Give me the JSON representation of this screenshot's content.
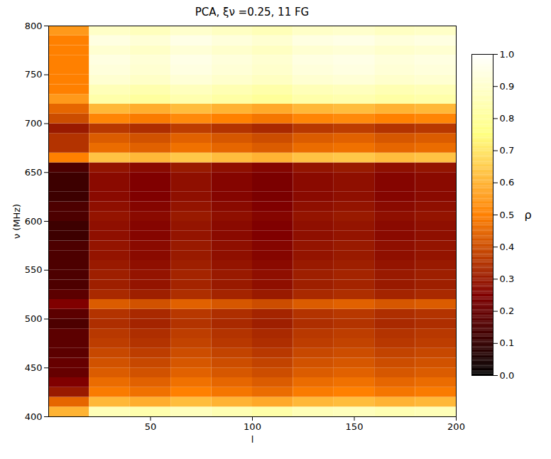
{
  "chart_data": {
    "type": "heatmap",
    "title": "PCA, ξν =0.25, 11 FG",
    "x_label": "l",
    "y_label": "ν (MHz)",
    "xlim": [
      0,
      200
    ],
    "xticks": [
      50,
      100,
      150,
      200
    ],
    "ylim": [
      400,
      800
    ],
    "yticks": [
      400,
      450,
      500,
      550,
      600,
      650,
      700,
      750,
      800
    ],
    "x": [
      10,
      30,
      50,
      70,
      90,
      110,
      130,
      150,
      170,
      190
    ],
    "y": [
      405,
      415,
      425,
      435,
      445,
      455,
      465,
      475,
      485,
      495,
      505,
      515,
      525,
      535,
      545,
      555,
      565,
      575,
      585,
      595,
      605,
      615,
      625,
      635,
      645,
      655,
      665,
      675,
      685,
      695,
      705,
      715,
      725,
      735,
      745,
      755,
      765,
      775,
      785,
      795
    ],
    "values": [
      [
        0.6,
        0.86,
        0.84,
        0.87,
        0.85,
        0.83,
        0.86,
        0.87,
        0.85,
        0.86
      ],
      [
        0.45,
        0.61,
        0.59,
        0.62,
        0.6,
        0.58,
        0.61,
        0.62,
        0.6,
        0.61
      ],
      [
        0.3,
        0.49,
        0.47,
        0.5,
        0.48,
        0.46,
        0.49,
        0.5,
        0.48,
        0.49
      ],
      [
        0.25,
        0.46,
        0.44,
        0.47,
        0.45,
        0.43,
        0.46,
        0.47,
        0.45,
        0.46
      ],
      [
        0.2,
        0.43,
        0.41,
        0.44,
        0.42,
        0.4,
        0.43,
        0.44,
        0.42,
        0.43
      ],
      [
        0.2,
        0.41,
        0.39,
        0.42,
        0.4,
        0.38,
        0.41,
        0.42,
        0.4,
        0.41
      ],
      [
        0.18,
        0.39,
        0.37,
        0.4,
        0.38,
        0.36,
        0.39,
        0.4,
        0.38,
        0.39
      ],
      [
        0.18,
        0.37,
        0.35,
        0.38,
        0.36,
        0.34,
        0.37,
        0.38,
        0.36,
        0.37
      ],
      [
        0.18,
        0.36,
        0.34,
        0.37,
        0.35,
        0.33,
        0.36,
        0.37,
        0.35,
        0.36
      ],
      [
        0.15,
        0.34,
        0.32,
        0.35,
        0.33,
        0.31,
        0.34,
        0.35,
        0.33,
        0.34
      ],
      [
        0.18,
        0.35,
        0.33,
        0.36,
        0.34,
        0.32,
        0.35,
        0.36,
        0.34,
        0.35
      ],
      [
        0.25,
        0.43,
        0.41,
        0.44,
        0.42,
        0.4,
        0.43,
        0.44,
        0.42,
        0.43
      ],
      [
        0.18,
        0.33,
        0.31,
        0.34,
        0.32,
        0.3,
        0.33,
        0.34,
        0.32,
        0.33
      ],
      [
        0.15,
        0.31,
        0.29,
        0.32,
        0.3,
        0.28,
        0.31,
        0.32,
        0.3,
        0.31
      ],
      [
        0.15,
        0.31,
        0.29,
        0.32,
        0.3,
        0.28,
        0.31,
        0.32,
        0.3,
        0.31
      ],
      [
        0.15,
        0.3,
        0.28,
        0.31,
        0.29,
        0.27,
        0.3,
        0.31,
        0.29,
        0.3
      ],
      [
        0.15,
        0.29,
        0.27,
        0.3,
        0.28,
        0.26,
        0.29,
        0.3,
        0.28,
        0.29
      ],
      [
        0.15,
        0.29,
        0.27,
        0.3,
        0.28,
        0.26,
        0.29,
        0.3,
        0.28,
        0.29
      ],
      [
        0.12,
        0.28,
        0.26,
        0.29,
        0.27,
        0.25,
        0.28,
        0.29,
        0.27,
        0.28
      ],
      [
        0.12,
        0.28,
        0.26,
        0.29,
        0.27,
        0.25,
        0.28,
        0.29,
        0.27,
        0.28
      ],
      [
        0.15,
        0.29,
        0.27,
        0.3,
        0.28,
        0.26,
        0.29,
        0.3,
        0.28,
        0.29
      ],
      [
        0.15,
        0.28,
        0.26,
        0.29,
        0.27,
        0.25,
        0.28,
        0.29,
        0.27,
        0.28
      ],
      [
        0.12,
        0.27,
        0.25,
        0.28,
        0.26,
        0.24,
        0.27,
        0.28,
        0.26,
        0.27
      ],
      [
        0.12,
        0.27,
        0.25,
        0.28,
        0.26,
        0.24,
        0.27,
        0.28,
        0.26,
        0.27
      ],
      [
        0.12,
        0.27,
        0.25,
        0.28,
        0.26,
        0.24,
        0.27,
        0.28,
        0.26,
        0.27
      ],
      [
        0.15,
        0.29,
        0.27,
        0.3,
        0.28,
        0.26,
        0.29,
        0.3,
        0.28,
        0.29
      ],
      [
        0.5,
        0.63,
        0.61,
        0.64,
        0.62,
        0.6,
        0.63,
        0.64,
        0.62,
        0.63
      ],
      [
        0.35,
        0.46,
        0.44,
        0.47,
        0.45,
        0.43,
        0.46,
        0.47,
        0.45,
        0.46
      ],
      [
        0.35,
        0.43,
        0.41,
        0.44,
        0.42,
        0.4,
        0.43,
        0.44,
        0.42,
        0.43
      ],
      [
        0.3,
        0.36,
        0.34,
        0.37,
        0.35,
        0.33,
        0.36,
        0.37,
        0.35,
        0.36
      ],
      [
        0.4,
        0.51,
        0.49,
        0.52,
        0.5,
        0.48,
        0.51,
        0.52,
        0.5,
        0.51
      ],
      [
        0.45,
        0.61,
        0.59,
        0.62,
        0.6,
        0.58,
        0.61,
        0.62,
        0.6,
        0.61
      ],
      [
        0.55,
        0.83,
        0.81,
        0.84,
        0.82,
        0.8,
        0.83,
        0.84,
        0.82,
        0.83
      ],
      [
        0.5,
        0.86,
        0.84,
        0.87,
        0.85,
        0.83,
        0.86,
        0.87,
        0.85,
        0.86
      ],
      [
        0.5,
        0.91,
        0.89,
        0.92,
        0.9,
        0.88,
        0.91,
        0.92,
        0.9,
        0.91
      ],
      [
        0.5,
        0.93,
        0.91,
        0.94,
        0.92,
        0.9,
        0.93,
        0.94,
        0.92,
        0.93
      ],
      [
        0.5,
        0.94,
        0.92,
        0.95,
        0.93,
        0.91,
        0.94,
        0.95,
        0.93,
        0.94
      ],
      [
        0.5,
        0.91,
        0.89,
        0.92,
        0.9,
        0.88,
        0.91,
        0.92,
        0.9,
        0.91
      ],
      [
        0.5,
        0.94,
        0.92,
        0.95,
        0.93,
        0.91,
        0.94,
        0.95,
        0.93,
        0.94
      ],
      [
        0.55,
        0.89,
        0.87,
        0.9,
        0.88,
        0.86,
        0.89,
        0.9,
        0.88,
        0.89
      ]
    ],
    "colorbar": {
      "label": "ρ",
      "range": [
        0,
        1
      ],
      "ticks": [
        {
          "value": 0,
          "label": "0.0"
        },
        {
          "value": 0.1,
          "label": "0.1"
        },
        {
          "value": 0.2,
          "label": "0.2"
        },
        {
          "value": 0.3,
          "label": "0.3"
        },
        {
          "value": 0.4,
          "label": "0.4"
        },
        {
          "value": 0.5,
          "label": "0.5"
        },
        {
          "value": 0.6,
          "label": "0.6"
        },
        {
          "value": 0.7,
          "label": "0.7"
        },
        {
          "value": 0.8,
          "label": "0.8"
        },
        {
          "value": 0.9,
          "label": "0.9"
        },
        {
          "value": 1,
          "label": "1.0"
        }
      ]
    }
  }
}
